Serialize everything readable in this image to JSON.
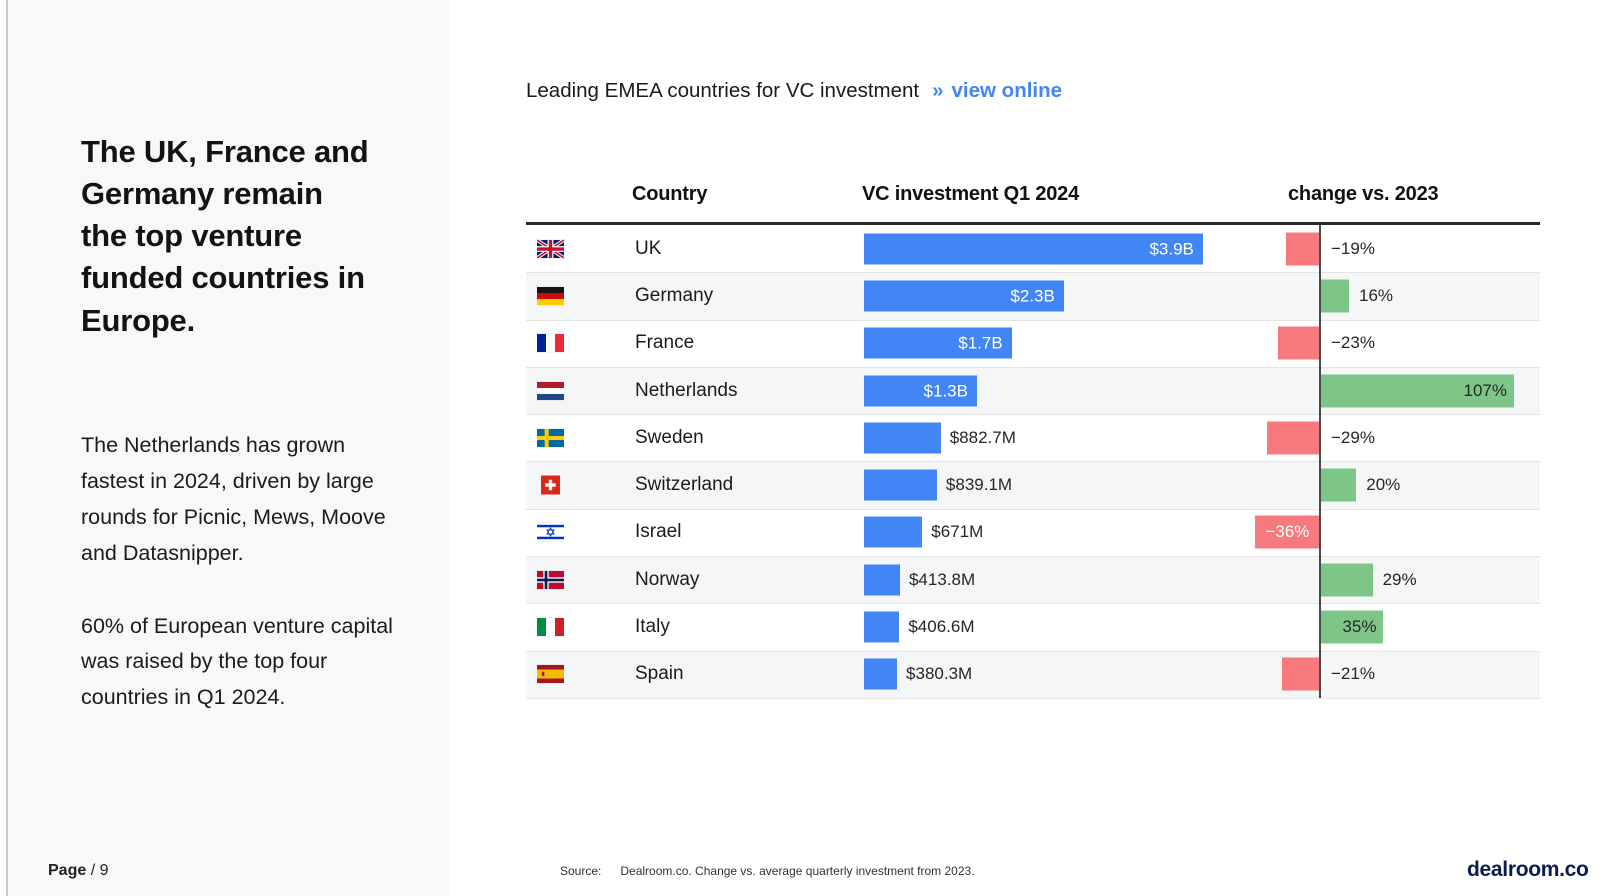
{
  "sidebar": {
    "headline": "The UK, France and Germany remain the top venture funded countries in Europe.",
    "paragraphs": [
      "The Netherlands has grown fastest in 2024, driven by large rounds for Picnic, Mews, Moove and Datasnipper.",
      "60% of European venture capital was raised by the top four countries in Q1 2024."
    ]
  },
  "chart": {
    "title": "Leading EMEA countries for VC investment",
    "link_arrow": "»",
    "link_label": "view online",
    "columns": [
      "Country",
      "VC investment Q1 2024",
      "change vs. 2023"
    ]
  },
  "chart_data": {
    "type": "bar",
    "title": "Leading EMEA countries for VC investment",
    "columns": [
      "Country",
      "VC investment Q1 2024",
      "change vs. 2023"
    ],
    "colors": {
      "investment_bar": "#4285F4",
      "increase_bar": "#7EC588",
      "decrease_bar": "#F5797D"
    },
    "rows": [
      {
        "country": "UK",
        "flag": "uk",
        "investment_label": "$3.9B",
        "investment_musd": 3900,
        "investment_label_inside": true,
        "change_label": "−19%",
        "change_pct": -19,
        "change_label_inside": false
      },
      {
        "country": "Germany",
        "flag": "germany",
        "investment_label": "$2.3B",
        "investment_musd": 2300,
        "investment_label_inside": true,
        "change_label": "16%",
        "change_pct": 16,
        "change_label_inside": false
      },
      {
        "country": "France",
        "flag": "france",
        "investment_label": "$1.7B",
        "investment_musd": 1700,
        "investment_label_inside": true,
        "change_label": "−23%",
        "change_pct": -23,
        "change_label_inside": false
      },
      {
        "country": "Netherlands",
        "flag": "netherlands",
        "investment_label": "$1.3B",
        "investment_musd": 1300,
        "investment_label_inside": true,
        "change_label": "107%",
        "change_pct": 107,
        "change_label_inside": true
      },
      {
        "country": "Sweden",
        "flag": "sweden",
        "investment_label": "$882.7M",
        "investment_musd": 882.7,
        "investment_label_inside": false,
        "change_label": "−29%",
        "change_pct": -29,
        "change_label_inside": false
      },
      {
        "country": "Switzerland",
        "flag": "switzerland",
        "investment_label": "$839.1M",
        "investment_musd": 839.1,
        "investment_label_inside": false,
        "change_label": "20%",
        "change_pct": 20,
        "change_label_inside": false
      },
      {
        "country": "Israel",
        "flag": "israel",
        "investment_label": "$671M",
        "investment_musd": 671,
        "investment_label_inside": false,
        "change_label": "−36%",
        "change_pct": -36,
        "change_label_inside": true
      },
      {
        "country": "Norway",
        "flag": "norway",
        "investment_label": "$413.8M",
        "investment_musd": 413.8,
        "investment_label_inside": false,
        "change_label": "29%",
        "change_pct": 29,
        "change_label_inside": false
      },
      {
        "country": "Italy",
        "flag": "italy",
        "investment_label": "$406.6M",
        "investment_musd": 406.6,
        "investment_label_inside": false,
        "change_label": "35%",
        "change_pct": 35,
        "change_label_inside": true
      },
      {
        "country": "Spain",
        "flag": "spain",
        "investment_label": "$380.3M",
        "investment_musd": 380.3,
        "investment_label_inside": false,
        "change_label": "−21%",
        "change_pct": -21,
        "change_label_inside": false
      }
    ]
  },
  "footer": {
    "page_label": "Page",
    "page_value": "/ 9",
    "source_label": "Source:",
    "source_text": "Dealroom.co. Change vs. average quarterly investment from 2023.",
    "brand": "dealroom.co"
  }
}
